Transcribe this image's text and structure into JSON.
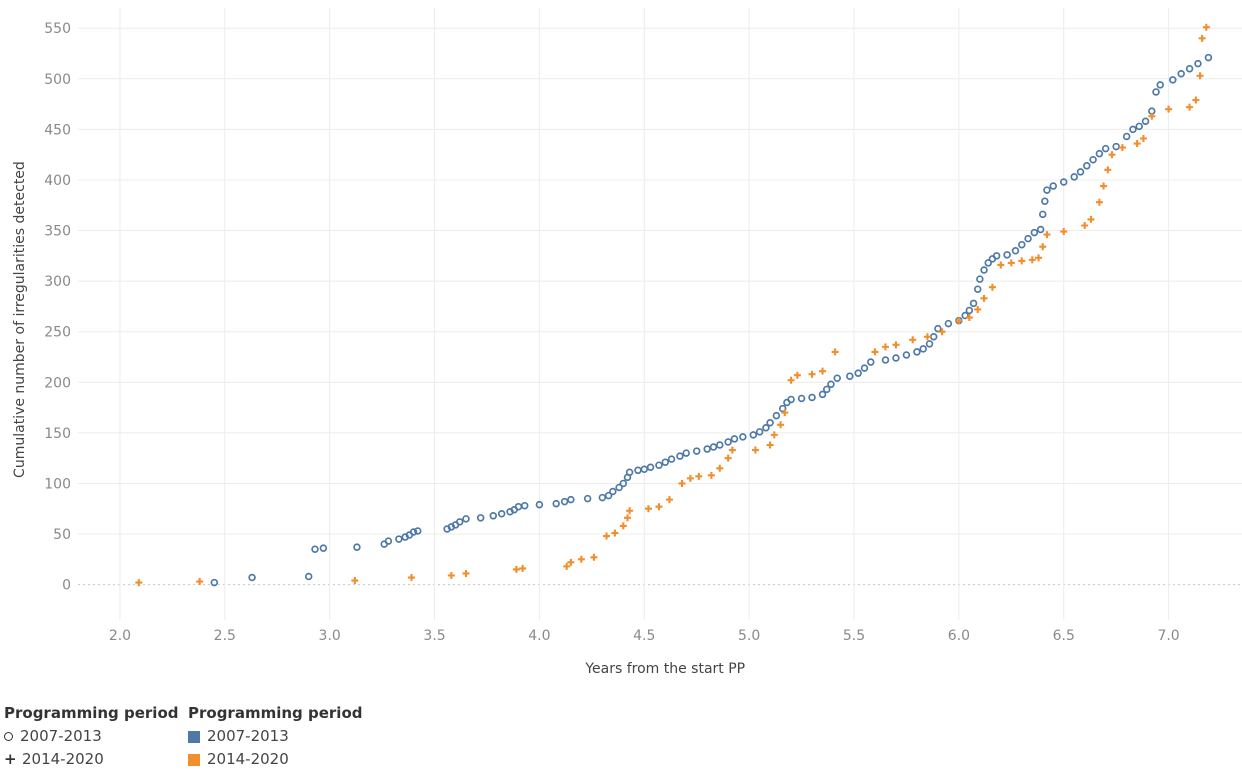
{
  "chart_data": {
    "type": "scatter",
    "xlabel": "Years from the start PP",
    "ylabel": "Cumulative number of irregularities detected",
    "xlim": [
      1.8,
      7.35
    ],
    "ylim": [
      -35,
      570
    ],
    "x_ticks": [
      "2.0",
      "2.5",
      "3.0",
      "3.5",
      "4.0",
      "4.5",
      "5.0",
      "5.5",
      "6.0",
      "6.5",
      "7.0"
    ],
    "x_tick_values": [
      2.0,
      2.5,
      3.0,
      3.5,
      4.0,
      4.5,
      5.0,
      5.5,
      6.0,
      6.5,
      7.0
    ],
    "y_ticks": [
      "0",
      "50",
      "100",
      "150",
      "200",
      "250",
      "300",
      "350",
      "400",
      "450",
      "500",
      "550"
    ],
    "y_tick_values": [
      0,
      50,
      100,
      150,
      200,
      250,
      300,
      350,
      400,
      450,
      500,
      550
    ],
    "grid": true,
    "series": [
      {
        "name": "2007-2013",
        "marker": "circle",
        "color": "#4e79a7",
        "points": [
          [
            2.45,
            2
          ],
          [
            2.63,
            7
          ],
          [
            2.9,
            8
          ],
          [
            2.93,
            35
          ],
          [
            2.97,
            36
          ],
          [
            3.13,
            37
          ],
          [
            3.26,
            40
          ],
          [
            3.28,
            43
          ],
          [
            3.33,
            45
          ],
          [
            3.36,
            47
          ],
          [
            3.38,
            49
          ],
          [
            3.4,
            52
          ],
          [
            3.42,
            53
          ],
          [
            3.56,
            55
          ],
          [
            3.58,
            57
          ],
          [
            3.6,
            59
          ],
          [
            3.62,
            62
          ],
          [
            3.65,
            65
          ],
          [
            3.72,
            66
          ],
          [
            3.78,
            68
          ],
          [
            3.82,
            70
          ],
          [
            3.86,
            72
          ],
          [
            3.88,
            74
          ],
          [
            3.9,
            77
          ],
          [
            3.93,
            78
          ],
          [
            4.0,
            79
          ],
          [
            4.08,
            80
          ],
          [
            4.12,
            82
          ],
          [
            4.15,
            84
          ],
          [
            4.23,
            85
          ],
          [
            4.3,
            86
          ],
          [
            4.33,
            88
          ],
          [
            4.35,
            92
          ],
          [
            4.38,
            96
          ],
          [
            4.4,
            100
          ],
          [
            4.42,
            106
          ],
          [
            4.43,
            111
          ],
          [
            4.47,
            113
          ],
          [
            4.5,
            114
          ],
          [
            4.53,
            116
          ],
          [
            4.57,
            118
          ],
          [
            4.6,
            121
          ],
          [
            4.63,
            124
          ],
          [
            4.67,
            127
          ],
          [
            4.7,
            130
          ],
          [
            4.75,
            132
          ],
          [
            4.8,
            134
          ],
          [
            4.83,
            136
          ],
          [
            4.86,
            138
          ],
          [
            4.9,
            141
          ],
          [
            4.93,
            144
          ],
          [
            4.97,
            146
          ],
          [
            5.02,
            148
          ],
          [
            5.05,
            151
          ],
          [
            5.08,
            155
          ],
          [
            5.1,
            160
          ],
          [
            5.13,
            167
          ],
          [
            5.16,
            174
          ],
          [
            5.18,
            180
          ],
          [
            5.2,
            183
          ],
          [
            5.25,
            184
          ],
          [
            5.3,
            185
          ],
          [
            5.35,
            188
          ],
          [
            5.37,
            193
          ],
          [
            5.39,
            198
          ],
          [
            5.42,
            204
          ],
          [
            5.48,
            206
          ],
          [
            5.52,
            209
          ],
          [
            5.55,
            214
          ],
          [
            5.58,
            220
          ],
          [
            5.65,
            222
          ],
          [
            5.7,
            224
          ],
          [
            5.75,
            227
          ],
          [
            5.8,
            230
          ],
          [
            5.83,
            233
          ],
          [
            5.86,
            238
          ],
          [
            5.88,
            245
          ],
          [
            5.9,
            253
          ],
          [
            5.95,
            258
          ],
          [
            6.0,
            261
          ],
          [
            6.03,
            266
          ],
          [
            6.05,
            271
          ],
          [
            6.07,
            278
          ],
          [
            6.09,
            292
          ],
          [
            6.1,
            302
          ],
          [
            6.12,
            311
          ],
          [
            6.14,
            318
          ],
          [
            6.16,
            322
          ],
          [
            6.18,
            325
          ],
          [
            6.23,
            326
          ],
          [
            6.27,
            330
          ],
          [
            6.3,
            336
          ],
          [
            6.33,
            342
          ],
          [
            6.36,
            348
          ],
          [
            6.39,
            351
          ],
          [
            6.4,
            366
          ],
          [
            6.41,
            379
          ],
          [
            6.42,
            390
          ],
          [
            6.45,
            394
          ],
          [
            6.5,
            398
          ],
          [
            6.55,
            403
          ],
          [
            6.58,
            408
          ],
          [
            6.61,
            414
          ],
          [
            6.64,
            420
          ],
          [
            6.67,
            426
          ],
          [
            6.7,
            431
          ],
          [
            6.75,
            433
          ],
          [
            6.8,
            443
          ],
          [
            6.83,
            450
          ],
          [
            6.86,
            453
          ],
          [
            6.89,
            458
          ],
          [
            6.92,
            468
          ],
          [
            6.94,
            487
          ],
          [
            6.96,
            494
          ],
          [
            7.02,
            499
          ],
          [
            7.06,
            505
          ],
          [
            7.1,
            510
          ],
          [
            7.14,
            515
          ],
          [
            7.19,
            521
          ]
        ]
      },
      {
        "name": "2014-2020",
        "marker": "plus",
        "color": "#f28e2b",
        "points": [
          [
            2.09,
            2
          ],
          [
            2.38,
            3
          ],
          [
            3.12,
            4
          ],
          [
            3.39,
            7
          ],
          [
            3.58,
            9
          ],
          [
            3.65,
            11
          ],
          [
            3.89,
            15
          ],
          [
            3.92,
            16
          ],
          [
            4.13,
            18
          ],
          [
            4.15,
            22
          ],
          [
            4.2,
            25
          ],
          [
            4.26,
            27
          ],
          [
            4.32,
            48
          ],
          [
            4.36,
            51
          ],
          [
            4.4,
            58
          ],
          [
            4.42,
            66
          ],
          [
            4.43,
            73
          ],
          [
            4.52,
            75
          ],
          [
            4.57,
            77
          ],
          [
            4.62,
            84
          ],
          [
            4.68,
            100
          ],
          [
            4.72,
            105
          ],
          [
            4.76,
            107
          ],
          [
            4.82,
            108
          ],
          [
            4.86,
            115
          ],
          [
            4.9,
            125
          ],
          [
            4.92,
            133
          ],
          [
            5.03,
            133
          ],
          [
            5.1,
            138
          ],
          [
            5.12,
            148
          ],
          [
            5.15,
            158
          ],
          [
            5.17,
            170
          ],
          [
            5.2,
            202
          ],
          [
            5.23,
            207
          ],
          [
            5.3,
            208
          ],
          [
            5.35,
            211
          ],
          [
            5.41,
            230
          ],
          [
            5.6,
            230
          ],
          [
            5.65,
            235
          ],
          [
            5.7,
            237
          ],
          [
            5.78,
            242
          ],
          [
            5.85,
            245
          ],
          [
            5.92,
            250
          ],
          [
            6.0,
            261
          ],
          [
            6.05,
            264
          ],
          [
            6.09,
            272
          ],
          [
            6.12,
            283
          ],
          [
            6.16,
            294
          ],
          [
            6.2,
            316
          ],
          [
            6.25,
            318
          ],
          [
            6.3,
            320
          ],
          [
            6.35,
            321
          ],
          [
            6.38,
            323
          ],
          [
            6.4,
            334
          ],
          [
            6.42,
            346
          ],
          [
            6.5,
            349
          ],
          [
            6.6,
            355
          ],
          [
            6.63,
            361
          ],
          [
            6.67,
            378
          ],
          [
            6.69,
            394
          ],
          [
            6.71,
            410
          ],
          [
            6.73,
            425
          ],
          [
            6.78,
            432
          ],
          [
            6.85,
            436
          ],
          [
            6.88,
            441
          ],
          [
            6.92,
            463
          ],
          [
            7.0,
            470
          ],
          [
            7.1,
            472
          ],
          [
            7.13,
            479
          ],
          [
            7.15,
            503
          ],
          [
            7.16,
            540
          ],
          [
            7.18,
            551
          ]
        ]
      }
    ]
  },
  "legend": {
    "shape": {
      "title": "Programming period",
      "items": [
        {
          "symbol": "circle",
          "label": "2007-2013"
        },
        {
          "symbol": "plus",
          "label": "2014-2020"
        }
      ]
    },
    "color": {
      "title": "Programming period",
      "items": [
        {
          "color": "#4e79a7",
          "label": "2007-2013"
        },
        {
          "color": "#f28e2b",
          "label": "2014-2020"
        }
      ]
    }
  }
}
